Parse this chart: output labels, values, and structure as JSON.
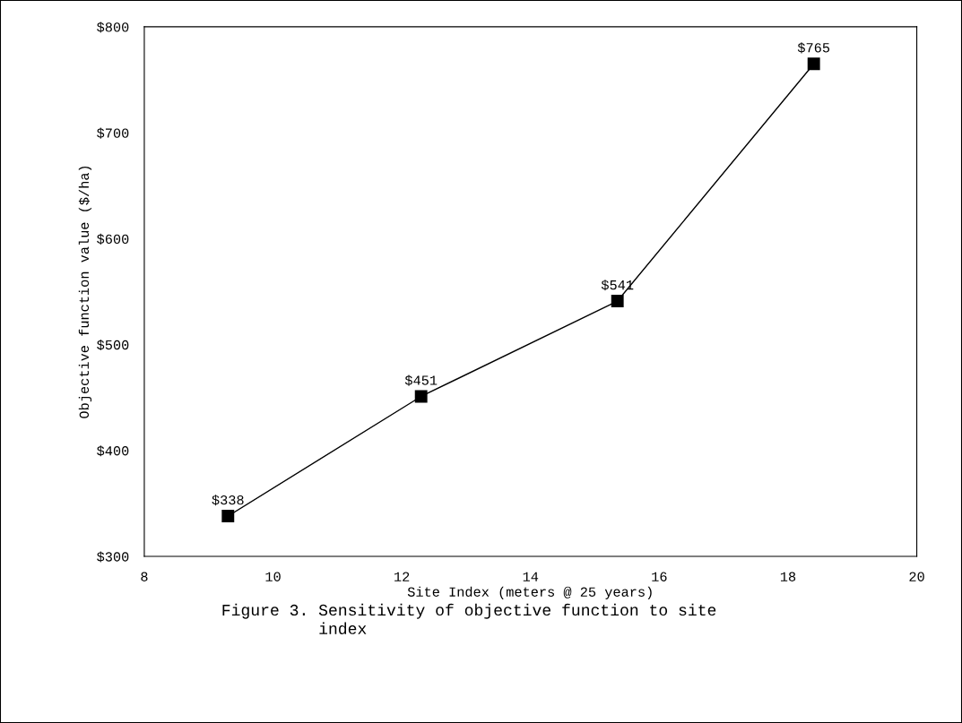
{
  "chart_data": {
    "type": "line",
    "xlabel": "Site Index (meters @ 25 years)",
    "ylabel": "Objective function value ($/ha)",
    "x": [
      9.3,
      12.3,
      15.35,
      18.4
    ],
    "series": [
      {
        "color": "#000000",
        "values": [
          338,
          451,
          541,
          765
        ],
        "value_labels": [
          "$338",
          "$451",
          "$541",
          "$765"
        ]
      }
    ],
    "marker": "square",
    "line_style": "solid",
    "xlim": [
      8,
      20
    ],
    "xticks": [
      8,
      10,
      12,
      14,
      16,
      18,
      20
    ],
    "ylim": [
      300,
      800
    ],
    "yticks": [
      {
        "value": 300,
        "label": "$300"
      },
      {
        "value": 400,
        "label": "$400"
      },
      {
        "value": 500,
        "label": "$500"
      },
      {
        "value": 600,
        "label": "$600"
      },
      {
        "value": 700,
        "label": "$700"
      },
      {
        "value": 800,
        "label": "$800"
      }
    ],
    "grid": false,
    "annotations": [
      "Figure 3. Sensitivity of objective function to site\n          index"
    ]
  }
}
